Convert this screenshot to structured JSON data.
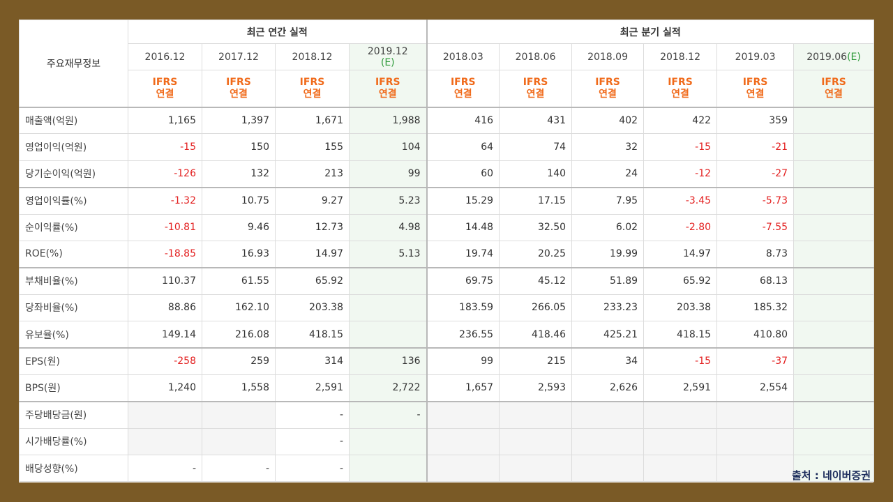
{
  "header": {
    "title": "주요재무정보",
    "groups": [
      {
        "label": "최근 연간 실적",
        "span": 4
      },
      {
        "label": "최근 분기 실적",
        "span": 6
      }
    ],
    "columns": [
      {
        "date": "2016.12",
        "standard": "IFRS",
        "basis": "연결"
      },
      {
        "date": "2017.12",
        "standard": "IFRS",
        "basis": "연결"
      },
      {
        "date": "2018.12",
        "standard": "IFRS",
        "basis": "연결"
      },
      {
        "date": "2019.12",
        "estimate": "(E)",
        "standard": "IFRS",
        "basis": "연결"
      },
      {
        "date": "2018.03",
        "standard": "IFRS",
        "basis": "연결"
      },
      {
        "date": "2018.06",
        "standard": "IFRS",
        "basis": "연결"
      },
      {
        "date": "2018.09",
        "standard": "IFRS",
        "basis": "연결"
      },
      {
        "date": "2018.12",
        "standard": "IFRS",
        "basis": "연결"
      },
      {
        "date": "2019.03",
        "standard": "IFRS",
        "basis": "연결"
      },
      {
        "date": "2019.06",
        "estimate": "(E)",
        "standard": "IFRS",
        "basis": "연결"
      }
    ]
  },
  "table": {
    "rows": [
      {
        "label": "매출액(억원)",
        "values": [
          "1,165",
          "1,397",
          "1,671",
          "1,988",
          "416",
          "431",
          "402",
          "422",
          "359",
          null
        ]
      },
      {
        "label": "영업이익(억원)",
        "values": [
          "-15",
          "150",
          "155",
          "104",
          "64",
          "74",
          "32",
          "-15",
          "-21",
          null
        ]
      },
      {
        "label": "당기순이익(억원)",
        "values": [
          "-126",
          "132",
          "213",
          "99",
          "60",
          "140",
          "24",
          "-12",
          "-27",
          null
        ]
      },
      {
        "label": "영업이익률(%)",
        "values": [
          "-1.32",
          "10.75",
          "9.27",
          "5.23",
          "15.29",
          "17.15",
          "7.95",
          "-3.45",
          "-5.73",
          null
        ]
      },
      {
        "label": "순이익률(%)",
        "values": [
          "-10.81",
          "9.46",
          "12.73",
          "4.98",
          "14.48",
          "32.50",
          "6.02",
          "-2.80",
          "-7.55",
          null
        ]
      },
      {
        "label": "ROE(%)",
        "values": [
          "-18.85",
          "16.93",
          "14.97",
          "5.13",
          "19.74",
          "20.25",
          "19.99",
          "14.97",
          "8.73",
          null
        ]
      },
      {
        "label": "부채비율(%)",
        "values": [
          "110.37",
          "61.55",
          "65.92",
          null,
          "69.75",
          "45.12",
          "51.89",
          "65.92",
          "68.13",
          null
        ]
      },
      {
        "label": "당좌비율(%)",
        "values": [
          "88.86",
          "162.10",
          "203.38",
          null,
          "183.59",
          "266.05",
          "233.23",
          "203.38",
          "185.32",
          null
        ]
      },
      {
        "label": "유보율(%)",
        "values": [
          "149.14",
          "216.08",
          "418.15",
          null,
          "236.55",
          "418.46",
          "425.21",
          "418.15",
          "410.80",
          null
        ]
      },
      {
        "label": "EPS(원)",
        "values": [
          "-258",
          "259",
          "314",
          "136",
          "99",
          "215",
          "34",
          "-15",
          "-37",
          null
        ]
      },
      {
        "label": "BPS(원)",
        "values": [
          "1,240",
          "1,558",
          "2,591",
          "2,722",
          "1,657",
          "2,593",
          "2,626",
          "2,591",
          "2,554",
          null
        ]
      },
      {
        "label": "주당배당금(원)",
        "values": [
          null,
          null,
          "-",
          "-",
          null,
          null,
          null,
          null,
          null,
          null
        ]
      },
      {
        "label": "시가배당률(%)",
        "values": [
          null,
          null,
          "-",
          null,
          null,
          null,
          null,
          null,
          null,
          null
        ]
      },
      {
        "label": "배당성향(%)",
        "values": [
          "-",
          "-",
          "-",
          null,
          null,
          null,
          null,
          null,
          null,
          null
        ]
      }
    ]
  },
  "source": "출처 : 네이버증권"
}
